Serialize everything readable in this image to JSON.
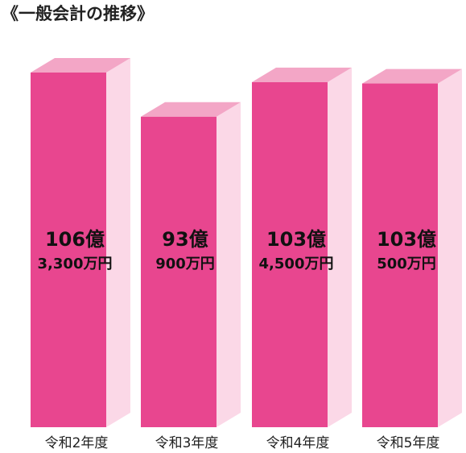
{
  "chart_data": {
    "type": "bar3d",
    "title": "《一般会計の推移》",
    "categories": [
      "令和2年度",
      "令和3年度",
      "令和4年度",
      "令和5年度"
    ],
    "values": [
      1063300,
      930900,
      1034500,
      1030500
    ],
    "value_labels": [
      [
        "106億",
        "3,300万円"
      ],
      [
        "93億",
        "900万円"
      ],
      [
        "103億",
        "4,500万円"
      ],
      [
        "103億",
        "500万円"
      ]
    ],
    "color": "#e8468f",
    "top_color": "#f3a6c6",
    "side_color": "#fbd8e7"
  }
}
